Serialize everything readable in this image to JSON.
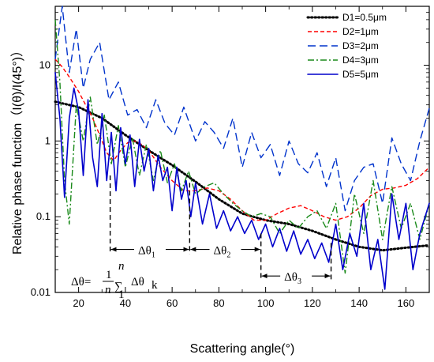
{
  "chart_data": {
    "type": "line",
    "xlabel": "Scattering angle(°)",
    "ylabel": "Relative phase function（I(θ)/I(45°)）",
    "xlim": [
      10,
      170
    ],
    "ylim": [
      0.01,
      60
    ],
    "yscale": "log",
    "xticks": [
      20,
      40,
      60,
      80,
      100,
      120,
      140,
      160
    ],
    "xtick_labels": [
      "20",
      "40",
      "60",
      "80",
      "100",
      "120",
      "140",
      "160"
    ],
    "yticks": [
      0.01,
      0.1,
      1,
      10
    ],
    "ytick_labels": [
      "0.01",
      "0.1",
      "1",
      "10"
    ],
    "grid": false,
    "legend_position": "top-right",
    "series": [
      {
        "name": "D1=0.5μm",
        "color": "#000000",
        "style": "dotted",
        "x": [
          10,
          20,
          30,
          40,
          50,
          60,
          70,
          80,
          90,
          100,
          110,
          120,
          130,
          140,
          150,
          160,
          170
        ],
        "y": [
          3.3,
          2.8,
          2.0,
          1.2,
          0.75,
          0.48,
          0.29,
          0.17,
          0.11,
          0.09,
          0.08,
          0.065,
          0.05,
          0.04,
          0.036,
          0.039,
          0.042
        ]
      },
      {
        "name": "D2=1μm",
        "color": "#ff0000",
        "style": "short-dash",
        "x": [
          10,
          13,
          16,
          20,
          23,
          26,
          29,
          32,
          35,
          38,
          41,
          44,
          47,
          50,
          55,
          60,
          65,
          70,
          75,
          80,
          85,
          90,
          95,
          100,
          105,
          110,
          115,
          120,
          125,
          130,
          135,
          140,
          145,
          150,
          155,
          160,
          165,
          170
        ],
        "y": [
          12,
          9.5,
          7,
          4.5,
          3.0,
          2.0,
          1.2,
          0.7,
          0.55,
          0.75,
          0.95,
          1.0,
          0.9,
          0.75,
          0.45,
          0.3,
          0.22,
          0.22,
          0.24,
          0.22,
          0.17,
          0.12,
          0.09,
          0.09,
          0.11,
          0.13,
          0.14,
          0.12,
          0.1,
          0.09,
          0.1,
          0.13,
          0.19,
          0.23,
          0.24,
          0.26,
          0.32,
          0.45
        ]
      },
      {
        "name": "D3=2μm",
        "color": "#0033cc",
        "style": "long-dash",
        "x": [
          10,
          13,
          16,
          19,
          22,
          25,
          29,
          33,
          37,
          41,
          45,
          49,
          53,
          57,
          61,
          65,
          70,
          74,
          78,
          82,
          86,
          90,
          94,
          98,
          102,
          106,
          110,
          114,
          118,
          122,
          126,
          130,
          134,
          138,
          142,
          146,
          150,
          154,
          158,
          162,
          166,
          170
        ],
        "y": [
          12,
          60,
          8,
          30,
          5,
          12,
          20,
          3.5,
          6,
          2.2,
          2.6,
          1.5,
          3.5,
          1.7,
          1.2,
          2.8,
          1.0,
          1.8,
          1.3,
          0.8,
          2.0,
          0.45,
          1.3,
          0.6,
          0.9,
          0.35,
          1.0,
          0.5,
          0.38,
          0.7,
          0.25,
          0.6,
          0.12,
          0.3,
          0.45,
          0.5,
          0.15,
          1.1,
          0.5,
          0.3,
          1.0,
          2.7
        ]
      },
      {
        "name": "D4=3μm",
        "color": "#1a8a1a",
        "style": "dash-dot",
        "x": [
          10,
          12,
          14,
          16,
          19,
          22,
          25,
          28,
          31,
          34,
          37,
          40,
          43,
          46,
          49,
          52,
          55,
          58,
          61,
          64,
          67,
          70,
          74,
          78,
          82,
          86,
          90,
          94,
          98,
          102,
          106,
          110,
          114,
          118,
          122,
          126,
          130,
          134,
          138,
          142,
          146,
          150,
          154,
          158,
          162,
          166,
          170
        ],
        "y": [
          40,
          6,
          0.3,
          0.08,
          3.0,
          1.0,
          3.8,
          0.9,
          2.2,
          0.5,
          1.6,
          0.45,
          1.1,
          0.35,
          0.9,
          0.3,
          0.75,
          0.28,
          0.5,
          0.22,
          0.4,
          0.2,
          0.25,
          0.28,
          0.2,
          0.15,
          0.12,
          0.1,
          0.11,
          0.1,
          0.06,
          0.09,
          0.07,
          0.1,
          0.12,
          0.07,
          0.15,
          0.018,
          0.2,
          0.06,
          0.3,
          0.05,
          0.25,
          0.07,
          0.15,
          0.05,
          0.15
        ]
      },
      {
        "name": "D5=5μm",
        "color": "#0000cc",
        "style": "solid",
        "x": [
          10,
          12,
          14,
          16,
          18,
          20,
          22,
          24,
          26,
          28,
          30,
          32,
          34,
          36,
          38,
          40,
          42,
          44,
          46,
          48,
          50,
          52,
          54,
          56,
          58,
          60,
          62,
          64,
          66,
          68,
          70,
          73,
          76,
          79,
          82,
          85,
          88,
          91,
          94,
          97,
          100,
          103,
          106,
          109,
          112,
          115,
          118,
          121,
          124,
          127,
          130,
          133,
          136,
          139,
          142,
          145,
          148,
          151,
          154,
          157,
          160,
          163,
          166,
          170
        ],
        "y": [
          8,
          2,
          0.18,
          2,
          5,
          2.5,
          0.35,
          3.5,
          0.6,
          0.25,
          2.3,
          0.3,
          1.3,
          0.22,
          1.5,
          0.5,
          1.2,
          0.25,
          1.05,
          0.4,
          0.8,
          0.22,
          0.65,
          0.3,
          0.45,
          0.12,
          0.45,
          0.17,
          0.3,
          0.1,
          0.28,
          0.08,
          0.2,
          0.07,
          0.12,
          0.065,
          0.1,
          0.06,
          0.09,
          0.05,
          0.08,
          0.04,
          0.07,
          0.035,
          0.065,
          0.032,
          0.05,
          0.028,
          0.045,
          0.025,
          0.08,
          0.02,
          0.06,
          0.03,
          0.15,
          0.02,
          0.05,
          0.011,
          0.2,
          0.05,
          0.15,
          0.02,
          0.06,
          0.15
        ]
      }
    ],
    "annotations": {
      "brackets": [
        {
          "label_main": "Δθ",
          "label_sub": "1",
          "x_start": 33.5,
          "x_end": 67.5,
          "y": 0.037
        },
        {
          "label_main": "Δθ",
          "label_sub": "2",
          "x_start": 67.5,
          "x_end": 98,
          "y": 0.037
        },
        {
          "label_main": "Δθ",
          "label_sub": "3",
          "x_start": 98,
          "x_end": 128,
          "y": 0.0165
        }
      ],
      "drop_lines": [
        {
          "x": 33.5,
          "y_top": 0.35,
          "y_bottom": 0.037
        },
        {
          "x": 67.5,
          "y_top": 0.28,
          "y_bottom": 0.037
        },
        {
          "x": 98,
          "y_top": 0.06,
          "y_bottom": 0.0165
        },
        {
          "x": 128,
          "y_top": 0.045,
          "y_bottom": 0.0165
        }
      ],
      "formula": {
        "lhs": "Δθ=",
        "frac_num": "1",
        "frac_den": "n",
        "sum": "∑",
        "sum_top": "n",
        "sum_bottom": "1",
        "term": "Δθ",
        "term_sub": "k"
      }
    }
  }
}
